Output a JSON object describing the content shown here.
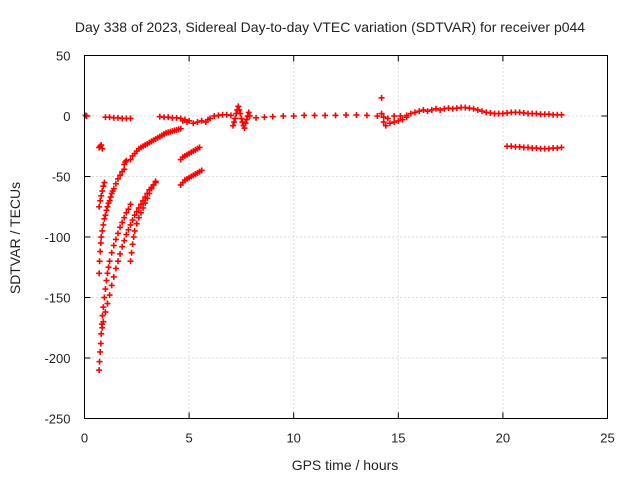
{
  "chart_data": {
    "type": "scatter",
    "title": "Day 338 of 2023, Sidereal Day-to-day VTEC variation (SDTVAR) for receiver p044",
    "xlabel": "GPS time / hours",
    "ylabel": "SDTVAR / TECUs",
    "xlim": [
      0,
      25
    ],
    "ylim": [
      -250,
      50
    ],
    "xticks": [
      0,
      5,
      10,
      15,
      20,
      25
    ],
    "yticks": [
      50,
      0,
      -50,
      -100,
      -150,
      -200,
      -250
    ],
    "grid": true,
    "marker": "+",
    "series": [
      {
        "name": "SDTVAR",
        "color": "#ff0000",
        "points": [
          [
            0.05,
            0.5
          ],
          [
            0.1,
            0
          ],
          [
            0.7,
            -26
          ],
          [
            0.75,
            -25
          ],
          [
            0.8,
            -24
          ],
          [
            0.85,
            -27
          ],
          [
            0.7,
            -75
          ],
          [
            0.75,
            -70
          ],
          [
            0.8,
            -66
          ],
          [
            0.85,
            -62
          ],
          [
            0.9,
            -58
          ],
          [
            0.95,
            -55
          ],
          [
            0.7,
            -130
          ],
          [
            0.72,
            -120
          ],
          [
            0.75,
            -112
          ],
          [
            0.78,
            -105
          ],
          [
            0.8,
            -100
          ],
          [
            0.85,
            -95
          ],
          [
            0.9,
            -90
          ],
          [
            0.95,
            -85
          ],
          [
            1.0,
            -82
          ],
          [
            1.05,
            -78
          ],
          [
            1.1,
            -75
          ],
          [
            1.15,
            -72
          ],
          [
            1.2,
            -70
          ],
          [
            1.25,
            -67
          ],
          [
            1.3,
            -64
          ],
          [
            1.35,
            -62
          ],
          [
            1.4,
            -60
          ],
          [
            1.5,
            -56
          ],
          [
            1.6,
            -52
          ],
          [
            1.7,
            -49
          ],
          [
            1.8,
            -46
          ],
          [
            1.9,
            -44
          ],
          [
            0.7,
            -210
          ],
          [
            0.72,
            -203
          ],
          [
            0.75,
            -195
          ],
          [
            0.78,
            -188
          ],
          [
            0.8,
            -180
          ],
          [
            0.83,
            -172
          ],
          [
            0.86,
            -165
          ],
          [
            0.9,
            -158
          ],
          [
            0.95,
            -150
          ],
          [
            1.0,
            -143
          ],
          [
            1.05,
            -136
          ],
          [
            1.1,
            -130
          ],
          [
            1.15,
            -125
          ],
          [
            1.2,
            -120
          ],
          [
            1.3,
            -113
          ],
          [
            1.4,
            -107
          ],
          [
            1.5,
            -102
          ],
          [
            1.6,
            -97
          ],
          [
            1.7,
            -92
          ],
          [
            1.8,
            -88
          ],
          [
            1.9,
            -84
          ],
          [
            2.0,
            -80
          ],
          [
            2.1,
            -77
          ],
          [
            2.2,
            -73
          ],
          [
            0.85,
            -175
          ],
          [
            0.9,
            -170
          ],
          [
            1.0,
            -162
          ],
          [
            1.1,
            -155
          ],
          [
            1.2,
            -148
          ],
          [
            1.3,
            -140
          ],
          [
            1.4,
            -133
          ],
          [
            1.5,
            -126
          ],
          [
            1.6,
            -120
          ],
          [
            1.7,
            -114
          ],
          [
            1.8,
            -108
          ],
          [
            1.9,
            -103
          ],
          [
            2.0,
            -98
          ],
          [
            2.1,
            -94
          ],
          [
            2.2,
            -90
          ],
          [
            2.3,
            -86
          ],
          [
            2.4,
            -82
          ],
          [
            2.5,
            -79
          ],
          [
            2.6,
            -76
          ],
          [
            2.7,
            -73
          ],
          [
            2.8,
            -70
          ],
          [
            2.9,
            -67
          ],
          [
            3.0,
            -64
          ],
          [
            3.1,
            -61
          ],
          [
            3.2,
            -59
          ],
          [
            3.3,
            -57
          ],
          [
            3.4,
            -55
          ],
          [
            2.2,
            -120
          ],
          [
            2.25,
            -113
          ],
          [
            2.3,
            -106
          ],
          [
            2.35,
            -100
          ],
          [
            2.4,
            -95
          ],
          [
            2.5,
            -89
          ],
          [
            2.6,
            -84
          ],
          [
            2.7,
            -80
          ],
          [
            2.8,
            -76
          ],
          [
            2.9,
            -72
          ],
          [
            3.0,
            -68
          ],
          [
            3.1,
            -64
          ],
          [
            3.2,
            -60
          ],
          [
            3.3,
            -57
          ],
          [
            3.4,
            -54
          ],
          [
            2.2,
            -36
          ],
          [
            2.3,
            -33
          ],
          [
            2.4,
            -31
          ],
          [
            2.5,
            -29
          ],
          [
            2.6,
            -27
          ],
          [
            2.7,
            -26
          ],
          [
            2.8,
            -25
          ],
          [
            2.9,
            -24
          ],
          [
            3.0,
            -23
          ],
          [
            3.1,
            -22
          ],
          [
            3.2,
            -21
          ],
          [
            3.3,
            -20
          ],
          [
            3.4,
            -19
          ],
          [
            3.5,
            -18
          ],
          [
            3.6,
            -17
          ],
          [
            3.7,
            -16
          ],
          [
            3.8,
            -15
          ],
          [
            3.9,
            -14
          ],
          [
            4.0,
            -13.5
          ],
          [
            4.1,
            -13
          ],
          [
            4.2,
            -12.5
          ],
          [
            4.3,
            -12
          ],
          [
            4.4,
            -11.5
          ],
          [
            4.5,
            -11
          ],
          [
            4.6,
            -10.5
          ],
          [
            1.9,
            -40
          ],
          [
            1.95,
            -38
          ],
          [
            2.0,
            -37
          ],
          [
            1.0,
            -1
          ],
          [
            1.2,
            -1
          ],
          [
            1.4,
            -1.5
          ],
          [
            1.6,
            -1.5
          ],
          [
            1.8,
            -2
          ],
          [
            2.0,
            -2
          ],
          [
            2.2,
            -2
          ],
          [
            3.6,
            -0.5
          ],
          [
            3.8,
            -1
          ],
          [
            4.0,
            -1
          ],
          [
            4.2,
            -1.5
          ],
          [
            4.4,
            -1.5
          ],
          [
            4.6,
            -2
          ],
          [
            4.7,
            -4
          ],
          [
            4.8,
            -3
          ],
          [
            4.9,
            -5
          ],
          [
            5.0,
            -4
          ],
          [
            5.2,
            -6
          ],
          [
            5.4,
            -5
          ],
          [
            5.6,
            -4
          ],
          [
            4.6,
            -36
          ],
          [
            4.7,
            -34
          ],
          [
            4.8,
            -33
          ],
          [
            4.9,
            -32
          ],
          [
            5.0,
            -31
          ],
          [
            5.1,
            -30
          ],
          [
            5.2,
            -29
          ],
          [
            5.3,
            -28
          ],
          [
            5.4,
            -27
          ],
          [
            5.5,
            -26
          ],
          [
            4.6,
            -57
          ],
          [
            4.7,
            -55
          ],
          [
            4.8,
            -53
          ],
          [
            4.9,
            -52
          ],
          [
            5.0,
            -51
          ],
          [
            5.1,
            -50
          ],
          [
            5.2,
            -49
          ],
          [
            5.3,
            -48
          ],
          [
            5.4,
            -47
          ],
          [
            5.5,
            -46
          ],
          [
            5.6,
            -45
          ],
          [
            5.8,
            -5
          ],
          [
            5.9,
            -3
          ],
          [
            6.0,
            -2
          ],
          [
            6.2,
            0
          ],
          [
            6.4,
            0.5
          ],
          [
            6.6,
            1
          ],
          [
            6.8,
            1
          ],
          [
            7.0,
            0.5
          ],
          [
            7.1,
            -8
          ],
          [
            7.15,
            -5
          ],
          [
            7.2,
            -2
          ],
          [
            7.25,
            2
          ],
          [
            7.3,
            5
          ],
          [
            7.35,
            8
          ],
          [
            7.4,
            5
          ],
          [
            7.45,
            2
          ],
          [
            7.5,
            -2
          ],
          [
            7.55,
            -5
          ],
          [
            7.6,
            -8
          ],
          [
            7.65,
            -10
          ],
          [
            7.7,
            -6
          ],
          [
            7.75,
            -3
          ],
          [
            7.8,
            0
          ],
          [
            7.85,
            3
          ],
          [
            7.9,
            0
          ],
          [
            8.2,
            -1.5
          ],
          [
            8.6,
            -1
          ],
          [
            9.0,
            -0.5
          ],
          [
            9.5,
            0
          ],
          [
            10.0,
            0
          ],
          [
            10.5,
            0.5
          ],
          [
            11.0,
            0.5
          ],
          [
            11.5,
            0.5
          ],
          [
            12.0,
            0.5
          ],
          [
            12.5,
            0.8
          ],
          [
            13.0,
            0.8
          ],
          [
            13.5,
            0.5
          ],
          [
            14.0,
            0
          ],
          [
            14.2,
            15
          ],
          [
            14.2,
            2
          ],
          [
            14.3,
            -1
          ],
          [
            14.3,
            -5
          ],
          [
            14.4,
            -8
          ],
          [
            14.6,
            -6
          ],
          [
            14.8,
            -5
          ],
          [
            15.0,
            -4
          ],
          [
            15.2,
            -3
          ],
          [
            15.4,
            -1
          ],
          [
            14.5,
            -2
          ],
          [
            14.8,
            0
          ],
          [
            15.1,
            0
          ],
          [
            15.4,
            0.5
          ],
          [
            15.6,
            2
          ],
          [
            15.8,
            3
          ],
          [
            16.0,
            4
          ],
          [
            16.2,
            5
          ],
          [
            16.4,
            4
          ],
          [
            16.6,
            5
          ],
          [
            16.8,
            6
          ],
          [
            17.0,
            5
          ],
          [
            17.2,
            6
          ],
          [
            17.4,
            6.5
          ],
          [
            17.6,
            6
          ],
          [
            17.8,
            6.5
          ],
          [
            18.0,
            7
          ],
          [
            18.2,
            7
          ],
          [
            18.4,
            6.5
          ],
          [
            18.6,
            6
          ],
          [
            18.8,
            5
          ],
          [
            19.0,
            4
          ],
          [
            19.2,
            3
          ],
          [
            19.4,
            2.5
          ],
          [
            19.6,
            2
          ],
          [
            19.8,
            2
          ],
          [
            20.0,
            2
          ],
          [
            20.2,
            2.5
          ],
          [
            20.4,
            3
          ],
          [
            20.6,
            3
          ],
          [
            20.8,
            3
          ],
          [
            21.0,
            2.5
          ],
          [
            21.2,
            2
          ],
          [
            21.4,
            2
          ],
          [
            21.6,
            2
          ],
          [
            21.8,
            1.5
          ],
          [
            22.0,
            1.5
          ],
          [
            22.2,
            1.5
          ],
          [
            22.4,
            1
          ],
          [
            22.6,
            1
          ],
          [
            22.8,
            1
          ],
          [
            20.2,
            -25
          ],
          [
            20.4,
            -25
          ],
          [
            20.6,
            -25.5
          ],
          [
            20.8,
            -25.5
          ],
          [
            21.0,
            -26
          ],
          [
            21.2,
            -26
          ],
          [
            21.4,
            -26.5
          ],
          [
            21.6,
            -26.5
          ],
          [
            21.8,
            -27
          ],
          [
            22.0,
            -27
          ],
          [
            22.2,
            -27
          ],
          [
            22.4,
            -26.5
          ],
          [
            22.6,
            -26.5
          ],
          [
            22.8,
            -26
          ]
        ]
      }
    ]
  }
}
